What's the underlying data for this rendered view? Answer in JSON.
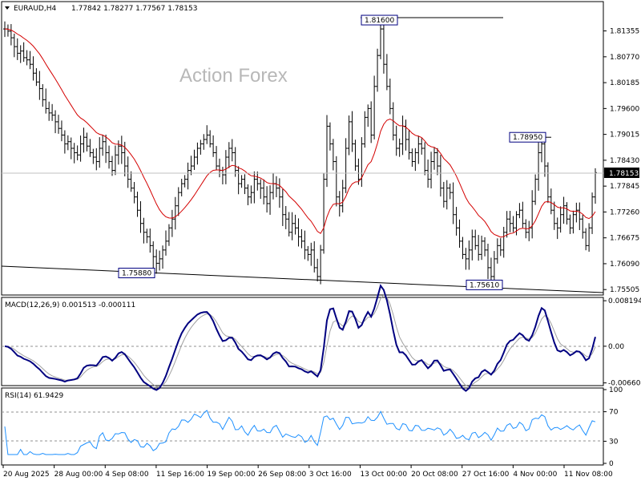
{
  "header": {
    "symbol": "EURAUD,H4",
    "ohlc": "1.77842 1.78277 1.77567 1.78153"
  },
  "watermark": "Action Forex",
  "colors": {
    "price": "#000000",
    "ma": "#d40000",
    "macd": "#000080",
    "signal": "#a0a0a0",
    "rsi": "#1e90ff"
  },
  "chart_data": [
    {
      "type": "bar",
      "panel": "price",
      "x_ticks": [
        "20 Aug 2025",
        "28 Aug 00:00",
        "4 Sep 08:00",
        "11 Sep 16:00",
        "19 Sep 00:00",
        "26 Sep 08:00",
        "3 Oct 16:00",
        "13 Oct 00:00",
        "20 Oct 08:00",
        "27 Oct 16:00",
        "4 Nov 00:00",
        "11 Nov 08:00"
      ],
      "y_ticks": [
        "1.81355",
        "1.80770",
        "1.80185",
        "1.79600",
        "1.79015",
        "1.78430",
        "1.77845",
        "1.77260",
        "1.76675",
        "1.76090",
        "1.75505"
      ],
      "ylim": [
        1.754,
        1.82
      ],
      "current_price": "1.78153",
      "annotations": [
        {
          "label": "1.81600",
          "value": 1.816
        },
        {
          "label": "1.78950",
          "value": 1.7895
        },
        {
          "label": "1.75880",
          "value": 1.7588
        },
        {
          "label": "1.75610",
          "value": 1.7561
        }
      ],
      "close": [
        1.814,
        1.8135,
        1.812,
        1.81,
        1.8085,
        1.809,
        1.8075,
        1.807,
        1.806,
        1.804,
        1.802,
        1.8005,
        1.798,
        1.796,
        1.795,
        1.7945,
        1.793,
        1.7915,
        1.79,
        1.788,
        1.7885,
        1.787,
        1.786,
        1.7855,
        1.788,
        1.7895,
        1.7875,
        1.786,
        1.785,
        1.784,
        1.787,
        1.7885,
        1.786,
        1.784,
        1.782,
        1.7855,
        1.7875,
        1.786,
        1.783,
        1.78,
        1.778,
        1.776,
        1.773,
        1.77,
        1.768,
        1.767,
        1.765,
        1.7625,
        1.761,
        1.762,
        1.764,
        1.766,
        1.769,
        1.771,
        1.774,
        1.777,
        1.779,
        1.78,
        1.782,
        1.783,
        1.785,
        1.787,
        1.788,
        1.789,
        1.79,
        1.788,
        1.786,
        1.783,
        1.782,
        1.781,
        1.785,
        1.787,
        1.786,
        1.782,
        1.779,
        1.78,
        1.778,
        1.776,
        1.777,
        1.78,
        1.779,
        1.778,
        1.776,
        1.7745,
        1.777,
        1.779,
        1.778,
        1.776,
        1.772,
        1.771,
        1.768,
        1.77,
        1.769,
        1.767,
        1.766,
        1.764,
        1.763,
        1.764,
        1.76,
        1.758,
        1.764,
        1.78,
        1.792,
        1.788,
        1.784,
        1.776,
        1.774,
        1.778,
        1.787,
        1.793,
        1.788,
        1.783,
        1.78,
        1.788,
        1.794,
        1.796,
        1.79,
        1.801,
        1.808,
        1.814,
        1.806,
        1.801,
        1.796,
        1.79,
        1.787,
        1.788,
        1.792,
        1.789,
        1.786,
        1.784,
        1.786,
        1.788,
        1.787,
        1.782,
        1.78,
        1.784,
        1.786,
        1.783,
        1.778,
        1.775,
        1.778,
        1.777,
        1.772,
        1.769,
        1.766,
        1.763,
        1.762,
        1.764,
        1.767,
        1.765,
        1.763,
        1.766,
        1.764,
        1.76,
        1.758,
        1.762,
        1.765,
        1.764,
        1.768,
        1.771,
        1.77,
        1.769,
        1.772,
        1.773,
        1.77,
        1.768,
        1.769,
        1.775,
        1.78,
        1.786,
        1.788,
        1.783,
        1.776,
        1.773,
        1.77,
        1.769,
        1.772,
        1.774,
        1.771,
        1.769,
        1.772,
        1.773,
        1.771,
        1.768,
        1.765,
        1.769,
        1.776,
        1.7815
      ]
    },
    {
      "type": "line",
      "panel": "macd",
      "title": "MACD(12,26,9) 0.001513 -0.000111",
      "y_ticks": [
        "0.008194",
        "0.00",
        "-0.006604"
      ],
      "ylim": [
        -0.0068,
        0.0085
      ]
    },
    {
      "type": "line",
      "panel": "rsi",
      "title": "RSI(14) 61.9429",
      "y_ticks": [
        "100",
        "70",
        "30",
        "0"
      ],
      "ylim": [
        0,
        100
      ]
    }
  ]
}
